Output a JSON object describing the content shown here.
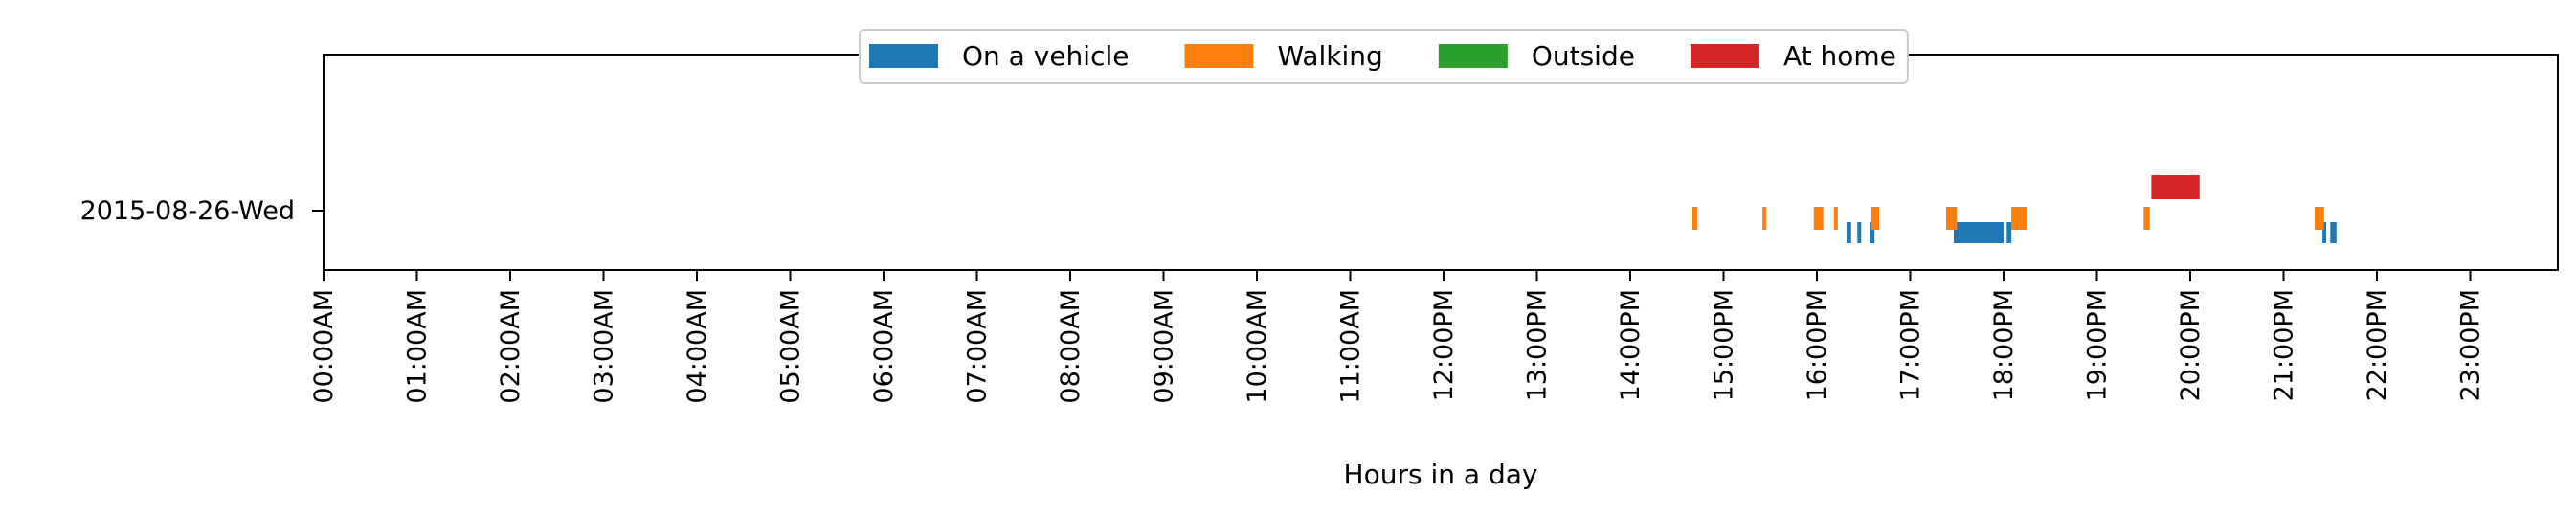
{
  "chart_data": {
    "type": "timeline",
    "title": "",
    "xlabel": "Hours in a day",
    "ylabel": "",
    "x_range": [
      "00:00",
      "23:59"
    ],
    "row_label": "2015-08-26-Wed",
    "x_ticks": [
      "00:00AM",
      "01:00AM",
      "02:00AM",
      "03:00AM",
      "04:00AM",
      "05:00AM",
      "06:00AM",
      "07:00AM",
      "08:00AM",
      "09:00AM",
      "10:00AM",
      "11:00AM",
      "12:00PM",
      "13:00PM",
      "14:00PM",
      "15:00PM",
      "16:00PM",
      "17:00PM",
      "18:00PM",
      "19:00PM",
      "20:00PM",
      "21:00PM",
      "22:00PM",
      "23:00PM"
    ],
    "legend_position": "top-center",
    "grid": false,
    "series": [
      {
        "name": "On a vehicle",
        "color": "#1f77b4",
        "intervals": [
          [
            "16:19",
            "16:22"
          ],
          [
            "16:26",
            "16:28"
          ],
          [
            "16:34",
            "16:37"
          ],
          [
            "17:28",
            "18:00"
          ],
          [
            "18:02",
            "18:05"
          ],
          [
            "21:25",
            "21:27"
          ],
          [
            "21:30",
            "21:34"
          ]
        ]
      },
      {
        "name": "Walking",
        "color": "#ff7f0e",
        "intervals": [
          [
            "14:40",
            "14:43"
          ],
          [
            "15:25",
            "15:27"
          ],
          [
            "15:58",
            "16:04"
          ],
          [
            "16:11",
            "16:13"
          ],
          [
            "16:35",
            "16:40"
          ],
          [
            "17:23",
            "17:30"
          ],
          [
            "18:05",
            "18:15"
          ],
          [
            "19:30",
            "19:34"
          ],
          [
            "21:20",
            "21:26"
          ]
        ]
      },
      {
        "name": "Outside",
        "color": "#2ca02c",
        "intervals": []
      },
      {
        "name": "At home",
        "color": "#d62728",
        "intervals": [
          [
            "19:35",
            "20:06"
          ]
        ]
      }
    ]
  }
}
